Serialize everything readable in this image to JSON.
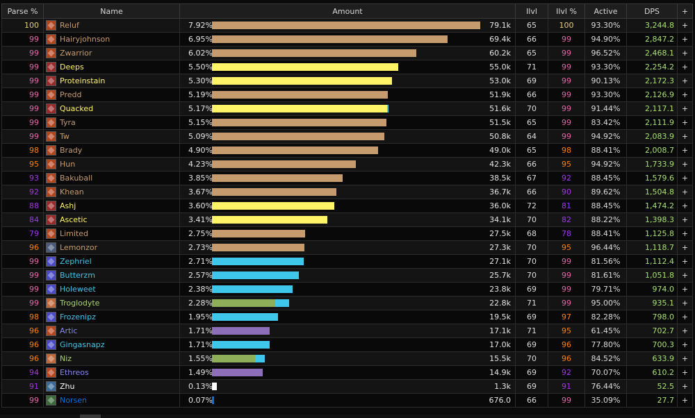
{
  "headers": {
    "parse": "Parse %",
    "name": "Name",
    "amount": "Amount",
    "ilvl": "Ilvl",
    "ilvl_pct": "Ilvl %",
    "active": "Active",
    "dps": "DPS",
    "add": "+"
  },
  "colors": {
    "legendary": "#e5cc80",
    "orange": "#ff8000",
    "epic": "#a335ee",
    "rare": "#0070ff",
    "uncommon": "#1eff00",
    "warrior": "#c69b6d",
    "rogue": "#fff468",
    "mage": "#3fc7eb",
    "hunter": "#aad372",
    "warlock": "#8788ee",
    "priest": "#ffffff",
    "shaman": "#0070dd",
    "dps": "#a7e06f"
  },
  "rows": [
    {
      "parse": "100",
      "parse_color": "#e5cc80",
      "name": "Reluf",
      "name_color": "#c69b6d",
      "icon": "warrior-fury-icon",
      "icon_color": "#b2451c",
      "pct": "7.92%",
      "fill": 1.0,
      "bar_color": "#c69b6d",
      "amount": "79.1k",
      "ilvl": "65",
      "ilvl_pct": "100",
      "ilvl_color": "#e5cc80",
      "active": "93.30%",
      "dps": "3,244.8",
      "plus": "+"
    },
    {
      "parse": "99",
      "parse_color": "#e268a8",
      "name": "Hairyjohnson",
      "name_color": "#c69b6d",
      "icon": "warrior-fury-icon",
      "icon_color": "#b2451c",
      "pct": "6.95%",
      "fill": 0.877,
      "bar_color": "#c69b6d",
      "amount": "69.4k",
      "ilvl": "66",
      "ilvl_pct": "99",
      "ilvl_color": "#e268a8",
      "active": "94.90%",
      "dps": "2,847.2",
      "plus": "+"
    },
    {
      "parse": "99",
      "parse_color": "#e268a8",
      "name": "Zwarrior",
      "name_color": "#c69b6d",
      "icon": "warrior-fury-icon",
      "icon_color": "#b2451c",
      "pct": "6.02%",
      "fill": 0.761,
      "bar_color": "#c69b6d",
      "amount": "60.2k",
      "ilvl": "65",
      "ilvl_pct": "99",
      "ilvl_color": "#e268a8",
      "active": "96.52%",
      "dps": "2,468.1",
      "plus": "+"
    },
    {
      "parse": "99",
      "parse_color": "#e268a8",
      "name": "Deeps",
      "name_color": "#fff468",
      "icon": "rogue-combat-icon",
      "icon_color": "#9a2a2a",
      "pct": "5.50%",
      "fill": 0.695,
      "bar_color": "#fff468",
      "amount": "55.0k",
      "ilvl": "71",
      "ilvl_pct": "99",
      "ilvl_color": "#e268a8",
      "active": "93.30%",
      "dps": "2,254.2",
      "plus": "+"
    },
    {
      "parse": "99",
      "parse_color": "#e268a8",
      "name": "Proteinstain",
      "name_color": "#fff468",
      "icon": "rogue-combat-icon",
      "icon_color": "#9a2a2a",
      "pct": "5.30%",
      "fill": 0.67,
      "bar_color": "#fff468",
      "amount": "53.0k",
      "ilvl": "69",
      "ilvl_pct": "99",
      "ilvl_color": "#e268a8",
      "active": "90.13%",
      "dps": "2,172.3",
      "plus": "+"
    },
    {
      "parse": "99",
      "parse_color": "#e268a8",
      "name": "Predd",
      "name_color": "#c69b6d",
      "icon": "warrior-fury-icon",
      "icon_color": "#b2451c",
      "pct": "5.19%",
      "fill": 0.656,
      "bar_color": "#c69b6d",
      "amount": "51.9k",
      "ilvl": "66",
      "ilvl_pct": "99",
      "ilvl_color": "#e268a8",
      "active": "93.30%",
      "dps": "2,126.9",
      "plus": "+"
    },
    {
      "parse": "99",
      "parse_color": "#e268a8",
      "name": "Quacked",
      "name_color": "#fff468",
      "icon": "rogue-combat-icon",
      "icon_color": "#9a2a2a",
      "pct": "5.17%",
      "fill": 0.653,
      "bar_color": "#fff468",
      "fill2": 0.006,
      "bar2_color": "#3fc7eb",
      "amount": "51.6k",
      "ilvl": "70",
      "ilvl_pct": "99",
      "ilvl_color": "#e268a8",
      "active": "91.44%",
      "dps": "2,117.1",
      "plus": "+"
    },
    {
      "parse": "99",
      "parse_color": "#e268a8",
      "name": "Tyra",
      "name_color": "#c69b6d",
      "icon": "warrior-fury-icon",
      "icon_color": "#b2451c",
      "pct": "5.15%",
      "fill": 0.651,
      "bar_color": "#c69b6d",
      "amount": "51.5k",
      "ilvl": "65",
      "ilvl_pct": "99",
      "ilvl_color": "#e268a8",
      "active": "83.42%",
      "dps": "2,111.9",
      "plus": "+"
    },
    {
      "parse": "99",
      "parse_color": "#e268a8",
      "name": "Tw",
      "name_color": "#c69b6d",
      "icon": "warrior-fury-icon",
      "icon_color": "#b2451c",
      "pct": "5.09%",
      "fill": 0.643,
      "bar_color": "#c69b6d",
      "amount": "50.8k",
      "ilvl": "64",
      "ilvl_pct": "99",
      "ilvl_color": "#e268a8",
      "active": "94.92%",
      "dps": "2,083.9",
      "plus": "+"
    },
    {
      "parse": "98",
      "parse_color": "#ff8000",
      "name": "Brady",
      "name_color": "#c69b6d",
      "icon": "warrior-fury-icon",
      "icon_color": "#b2451c",
      "pct": "4.90%",
      "fill": 0.619,
      "bar_color": "#c69b6d",
      "amount": "49.0k",
      "ilvl": "65",
      "ilvl_pct": "98",
      "ilvl_color": "#ff8000",
      "active": "88.41%",
      "dps": "2,008.7",
      "plus": "+"
    },
    {
      "parse": "95",
      "parse_color": "#ff8000",
      "name": "Hun",
      "name_color": "#c69b6d",
      "icon": "warrior-fury-icon",
      "icon_color": "#b2451c",
      "pct": "4.23%",
      "fill": 0.535,
      "bar_color": "#c69b6d",
      "amount": "42.3k",
      "ilvl": "66",
      "ilvl_pct": "95",
      "ilvl_color": "#ff8000",
      "active": "94.92%",
      "dps": "1,733.9",
      "plus": "+"
    },
    {
      "parse": "93",
      "parse_color": "#a335ee",
      "name": "Bakuball",
      "name_color": "#c69b6d",
      "icon": "warrior-fury-icon",
      "icon_color": "#b2451c",
      "pct": "3.85%",
      "fill": 0.487,
      "bar_color": "#c69b6d",
      "amount": "38.5k",
      "ilvl": "67",
      "ilvl_pct": "92",
      "ilvl_color": "#a335ee",
      "active": "88.45%",
      "dps": "1,579.6",
      "plus": "+"
    },
    {
      "parse": "92",
      "parse_color": "#a335ee",
      "name": "Khean",
      "name_color": "#c69b6d",
      "icon": "warrior-fury-icon",
      "icon_color": "#b2451c",
      "pct": "3.67%",
      "fill": 0.464,
      "bar_color": "#c69b6d",
      "amount": "36.7k",
      "ilvl": "66",
      "ilvl_pct": "90",
      "ilvl_color": "#a335ee",
      "active": "89.62%",
      "dps": "1,504.8",
      "plus": "+"
    },
    {
      "parse": "88",
      "parse_color": "#a335ee",
      "name": "Ashj",
      "name_color": "#fff468",
      "icon": "rogue-combat-icon",
      "icon_color": "#9a2a2a",
      "pct": "3.60%",
      "fill": 0.455,
      "bar_color": "#fff468",
      "amount": "36.0k",
      "ilvl": "72",
      "ilvl_pct": "81",
      "ilvl_color": "#a335ee",
      "active": "88.45%",
      "dps": "1,474.2",
      "plus": "+"
    },
    {
      "parse": "84",
      "parse_color": "#a335ee",
      "name": "Ascetic",
      "name_color": "#fff468",
      "icon": "rogue-combat-icon",
      "icon_color": "#9a2a2a",
      "pct": "3.41%",
      "fill": 0.431,
      "bar_color": "#fff468",
      "amount": "34.1k",
      "ilvl": "70",
      "ilvl_pct": "82",
      "ilvl_color": "#a335ee",
      "active": "88.22%",
      "dps": "1,398.3",
      "plus": "+"
    },
    {
      "parse": "79",
      "parse_color": "#a335ee",
      "name": "Limited",
      "name_color": "#c69b6d",
      "icon": "warrior-fury-icon",
      "icon_color": "#b2451c",
      "pct": "2.75%",
      "fill": 0.348,
      "bar_color": "#c69b6d",
      "amount": "27.5k",
      "ilvl": "68",
      "ilvl_pct": "78",
      "ilvl_color": "#a335ee",
      "active": "88.41%",
      "dps": "1,125.8",
      "plus": "+"
    },
    {
      "parse": "96",
      "parse_color": "#ff8000",
      "name": "Lemonzor",
      "name_color": "#c69b6d",
      "icon": "warrior-arms-icon",
      "icon_color": "#4a5a7a",
      "pct": "2.73%",
      "fill": 0.345,
      "bar_color": "#c69b6d",
      "amount": "27.3k",
      "ilvl": "70",
      "ilvl_pct": "95",
      "ilvl_color": "#ff8000",
      "active": "96.44%",
      "dps": "1,118.7",
      "plus": "+"
    },
    {
      "parse": "99",
      "parse_color": "#e268a8",
      "name": "Zephriel",
      "name_color": "#3fc7eb",
      "icon": "mage-frost-icon",
      "icon_color": "#4a4ac8",
      "pct": "2.71%",
      "fill": 0.343,
      "bar_color": "#3fc7eb",
      "amount": "27.1k",
      "ilvl": "70",
      "ilvl_pct": "99",
      "ilvl_color": "#e268a8",
      "active": "81.56%",
      "dps": "1,112.4",
      "plus": "+"
    },
    {
      "parse": "99",
      "parse_color": "#e268a8",
      "name": "Butterzm",
      "name_color": "#3fc7eb",
      "icon": "mage-frost-icon",
      "icon_color": "#4a4ac8",
      "pct": "2.57%",
      "fill": 0.325,
      "bar_color": "#3fc7eb",
      "amount": "25.7k",
      "ilvl": "70",
      "ilvl_pct": "99",
      "ilvl_color": "#e268a8",
      "active": "81.61%",
      "dps": "1,051.8",
      "plus": "+"
    },
    {
      "parse": "99",
      "parse_color": "#e268a8",
      "name": "Holeweet",
      "name_color": "#3fc7eb",
      "icon": "mage-frost-icon",
      "icon_color": "#4a4ac8",
      "pct": "2.38%",
      "fill": 0.301,
      "bar_color": "#3fc7eb",
      "amount": "23.8k",
      "ilvl": "69",
      "ilvl_pct": "99",
      "ilvl_color": "#e268a8",
      "active": "79.71%",
      "dps": "974.0",
      "plus": "+"
    },
    {
      "parse": "99",
      "parse_color": "#e268a8",
      "name": "Troglodyte",
      "name_color": "#aad372",
      "icon": "hunter-icon",
      "icon_color": "#c0683a",
      "pct": "2.28%",
      "fill": 0.237,
      "bar_color": "#8fae59",
      "fill2": 0.051,
      "bar2_color": "#3fc7eb",
      "amount": "22.8k",
      "ilvl": "71",
      "ilvl_pct": "99",
      "ilvl_color": "#e268a8",
      "active": "95.00%",
      "dps": "935.1",
      "plus": "+"
    },
    {
      "parse": "98",
      "parse_color": "#ff8000",
      "name": "Frozenipz",
      "name_color": "#3fc7eb",
      "icon": "mage-frost-icon",
      "icon_color": "#4a4ac8",
      "pct": "1.95%",
      "fill": 0.246,
      "bar_color": "#3fc7eb",
      "amount": "19.5k",
      "ilvl": "69",
      "ilvl_pct": "97",
      "ilvl_color": "#ff8000",
      "active": "82.28%",
      "dps": "798.0",
      "plus": "+"
    },
    {
      "parse": "96",
      "parse_color": "#ff8000",
      "name": "Artic",
      "name_color": "#8788ee",
      "icon": "warlock-icon",
      "icon_color": "#b8461c",
      "pct": "1.71%",
      "fill": 0.216,
      "bar_color": "#8c6fb8",
      "amount": "17.1k",
      "ilvl": "71",
      "ilvl_pct": "95",
      "ilvl_color": "#ff8000",
      "active": "61.45%",
      "dps": "702.7",
      "plus": "+"
    },
    {
      "parse": "96",
      "parse_color": "#ff8000",
      "name": "Gingasnapz",
      "name_color": "#3fc7eb",
      "icon": "mage-frost-icon",
      "icon_color": "#4a4ac8",
      "pct": "1.71%",
      "fill": 0.216,
      "bar_color": "#3fc7eb",
      "amount": "17.0k",
      "ilvl": "69",
      "ilvl_pct": "96",
      "ilvl_color": "#ff8000",
      "active": "77.80%",
      "dps": "700.3",
      "plus": "+"
    },
    {
      "parse": "96",
      "parse_color": "#ff8000",
      "name": "Niz",
      "name_color": "#aad372",
      "icon": "hunter-icon",
      "icon_color": "#c0683a",
      "pct": "1.55%",
      "fill": 0.16,
      "bar_color": "#8fae59",
      "fill2": 0.036,
      "bar2_color": "#3fc7eb",
      "amount": "15.5k",
      "ilvl": "70",
      "ilvl_pct": "96",
      "ilvl_color": "#ff8000",
      "active": "84.52%",
      "dps": "633.9",
      "plus": "+"
    },
    {
      "parse": "94",
      "parse_color": "#a335ee",
      "name": "Ethreos",
      "name_color": "#8788ee",
      "icon": "warlock-icon",
      "icon_color": "#b8461c",
      "pct": "1.49%",
      "fill": 0.189,
      "bar_color": "#8c6fb8",
      "amount": "14.9k",
      "ilvl": "69",
      "ilvl_pct": "92",
      "ilvl_color": "#a335ee",
      "active": "70.07%",
      "dps": "610.2",
      "plus": "+"
    },
    {
      "parse": "91",
      "parse_color": "#a335ee",
      "name": "Zhu",
      "name_color": "#ffffff",
      "icon": "priest-shadow-icon",
      "icon_color": "#3a6a9a",
      "pct": "0.13%",
      "fill": 0.017,
      "bar_color": "#ffffff",
      "amount": "1.3k",
      "ilvl": "69",
      "ilvl_pct": "91",
      "ilvl_color": "#a335ee",
      "active": "76.44%",
      "dps": "52.5",
      "plus": "+"
    },
    {
      "parse": "99",
      "parse_color": "#e268a8",
      "name": "Norsen",
      "name_color": "#0070dd",
      "icon": "shaman-icon",
      "icon_color": "#3a6a3a",
      "pct": "0.07%",
      "fill": 0.009,
      "bar_color": "#0070dd",
      "amount": "676.0",
      "ilvl": "66",
      "ilvl_pct": "99",
      "ilvl_color": "#e268a8",
      "active": "35.09%",
      "dps": "27.7",
      "plus": "+"
    }
  ]
}
